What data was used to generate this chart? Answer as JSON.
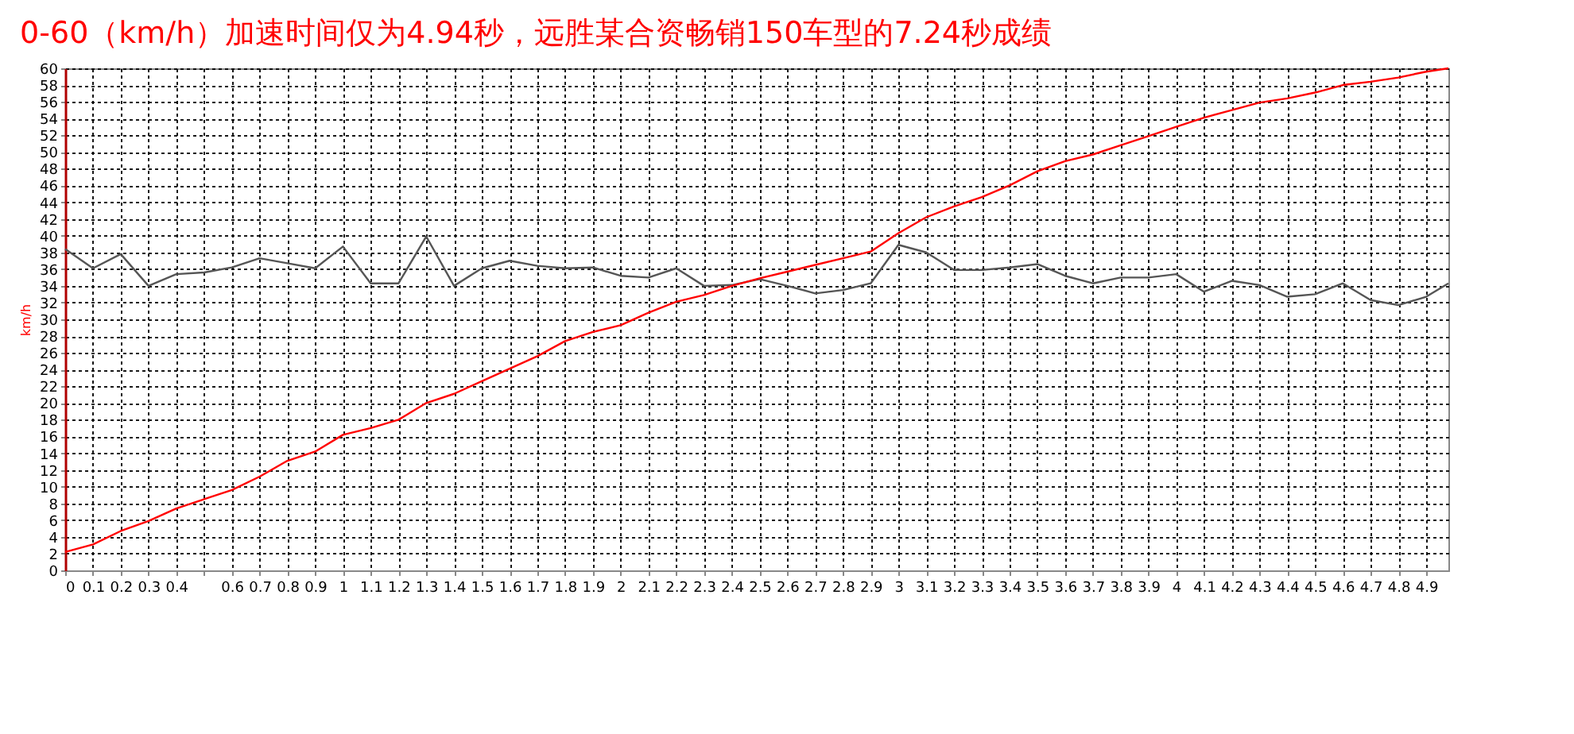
{
  "chart_data": {
    "type": "line",
    "title": "0-60（km/h）加速时间仅为4.94秒，远胜某合资畅销150车型的7.24秒成绩",
    "ylabel": "km/h",
    "xlim": [
      0,
      4.98
    ],
    "ylim": [
      0,
      60
    ],
    "xticks": [
      0,
      0.1,
      0.2,
      0.3,
      0.4,
      {
        "value": 0.5,
        "label": null
      },
      0.6,
      0.7,
      0.8,
      0.9,
      1,
      1.1,
      1.2,
      1.3,
      1.4,
      1.5,
      1.6,
      1.7,
      1.8,
      1.9,
      2,
      2.1,
      2.2,
      2.3,
      2.4,
      2.5,
      2.6,
      2.7,
      2.8,
      2.9,
      3,
      3.1,
      3.2,
      3.3,
      3.4,
      3.5,
      3.6,
      3.7,
      3.8,
      3.9,
      4,
      4.1,
      4.2,
      4.3,
      4.4,
      4.5,
      4.6,
      4.7,
      4.8,
      4.9
    ],
    "yticks": [
      0,
      2,
      4,
      6,
      8,
      10,
      12,
      14,
      16,
      18,
      20,
      22,
      24,
      26,
      28,
      30,
      32,
      34,
      36,
      38,
      40,
      42,
      44,
      46,
      48,
      50,
      52,
      54,
      56,
      58,
      60
    ],
    "grid": true,
    "legend": false,
    "line_style": "solid",
    "marker": "none",
    "series": [
      {
        "color": "#555555",
        "x": [
          0,
          0.1,
          0.2,
          0.3,
          0.4,
          0.5,
          0.6,
          0.7,
          0.8,
          0.9,
          1,
          1.1,
          1.2,
          1.3,
          1.4,
          1.5,
          1.6,
          1.7,
          1.8,
          1.9,
          2,
          2.1,
          2.2,
          2.3,
          2.4,
          2.5,
          2.6,
          2.7,
          2.8,
          2.9,
          3,
          3.1,
          3.2,
          3.3,
          3.4,
          3.5,
          3.6,
          3.7,
          3.8,
          3.9,
          4,
          4.1,
          4.2,
          4.3,
          4.4,
          4.5,
          4.6,
          4.7,
          4.8,
          4.9,
          4.98
        ],
        "values": [
          38.4,
          36.1,
          37.8,
          34.0,
          35.4,
          35.6,
          36.2,
          37.3,
          36.7,
          36.1,
          38.7,
          34.3,
          34.3,
          39.9,
          34.0,
          36.1,
          37.0,
          36.4,
          36.1,
          36.2,
          35.2,
          35.0,
          36.1,
          34.0,
          34.1,
          34.8,
          34.0,
          33.1,
          33.5,
          34.3,
          38.9,
          38.0,
          35.9,
          35.9,
          36.2,
          36.6,
          35.2,
          34.3,
          35.0,
          35.0,
          35.4,
          33.3,
          34.6,
          34.1,
          32.7,
          33.0,
          34.3,
          32.3,
          31.7,
          32.7,
          34.3
        ]
      },
      {
        "color": "#ff0000",
        "x": [
          0,
          0.1,
          0.2,
          0.3,
          0.4,
          0.5,
          0.6,
          0.7,
          0.8,
          0.9,
          1,
          1.1,
          1.2,
          1.3,
          1.4,
          1.5,
          1.6,
          1.7,
          1.8,
          1.9,
          2,
          2.1,
          2.2,
          2.3,
          2.4,
          2.5,
          2.6,
          2.7,
          2.8,
          2.9,
          3,
          3.1,
          3.2,
          3.3,
          3.4,
          3.5,
          3.6,
          3.7,
          3.8,
          3.9,
          4,
          4.1,
          4.2,
          4.3,
          4.4,
          4.5,
          4.6,
          4.7,
          4.8,
          4.9,
          4.98
        ],
        "values": [
          2.2,
          3.1,
          4.7,
          5.9,
          7.4,
          8.5,
          9.6,
          11.2,
          13.1,
          14.2,
          16.2,
          17.0,
          18.0,
          20.0,
          21.1,
          22.6,
          24.1,
          25.6,
          27.4,
          28.5,
          29.3,
          30.8,
          32.1,
          32.9,
          34.0,
          34.9,
          35.7,
          36.5,
          37.3,
          38.1,
          40.3,
          42.2,
          43.5,
          44.6,
          46.0,
          47.7,
          48.9,
          49.7,
          50.8,
          51.9,
          53.0,
          54.1,
          55.0,
          55.9,
          56.4,
          57.1,
          58.0,
          58.4,
          58.9,
          59.6,
          60
        ]
      }
    ]
  }
}
